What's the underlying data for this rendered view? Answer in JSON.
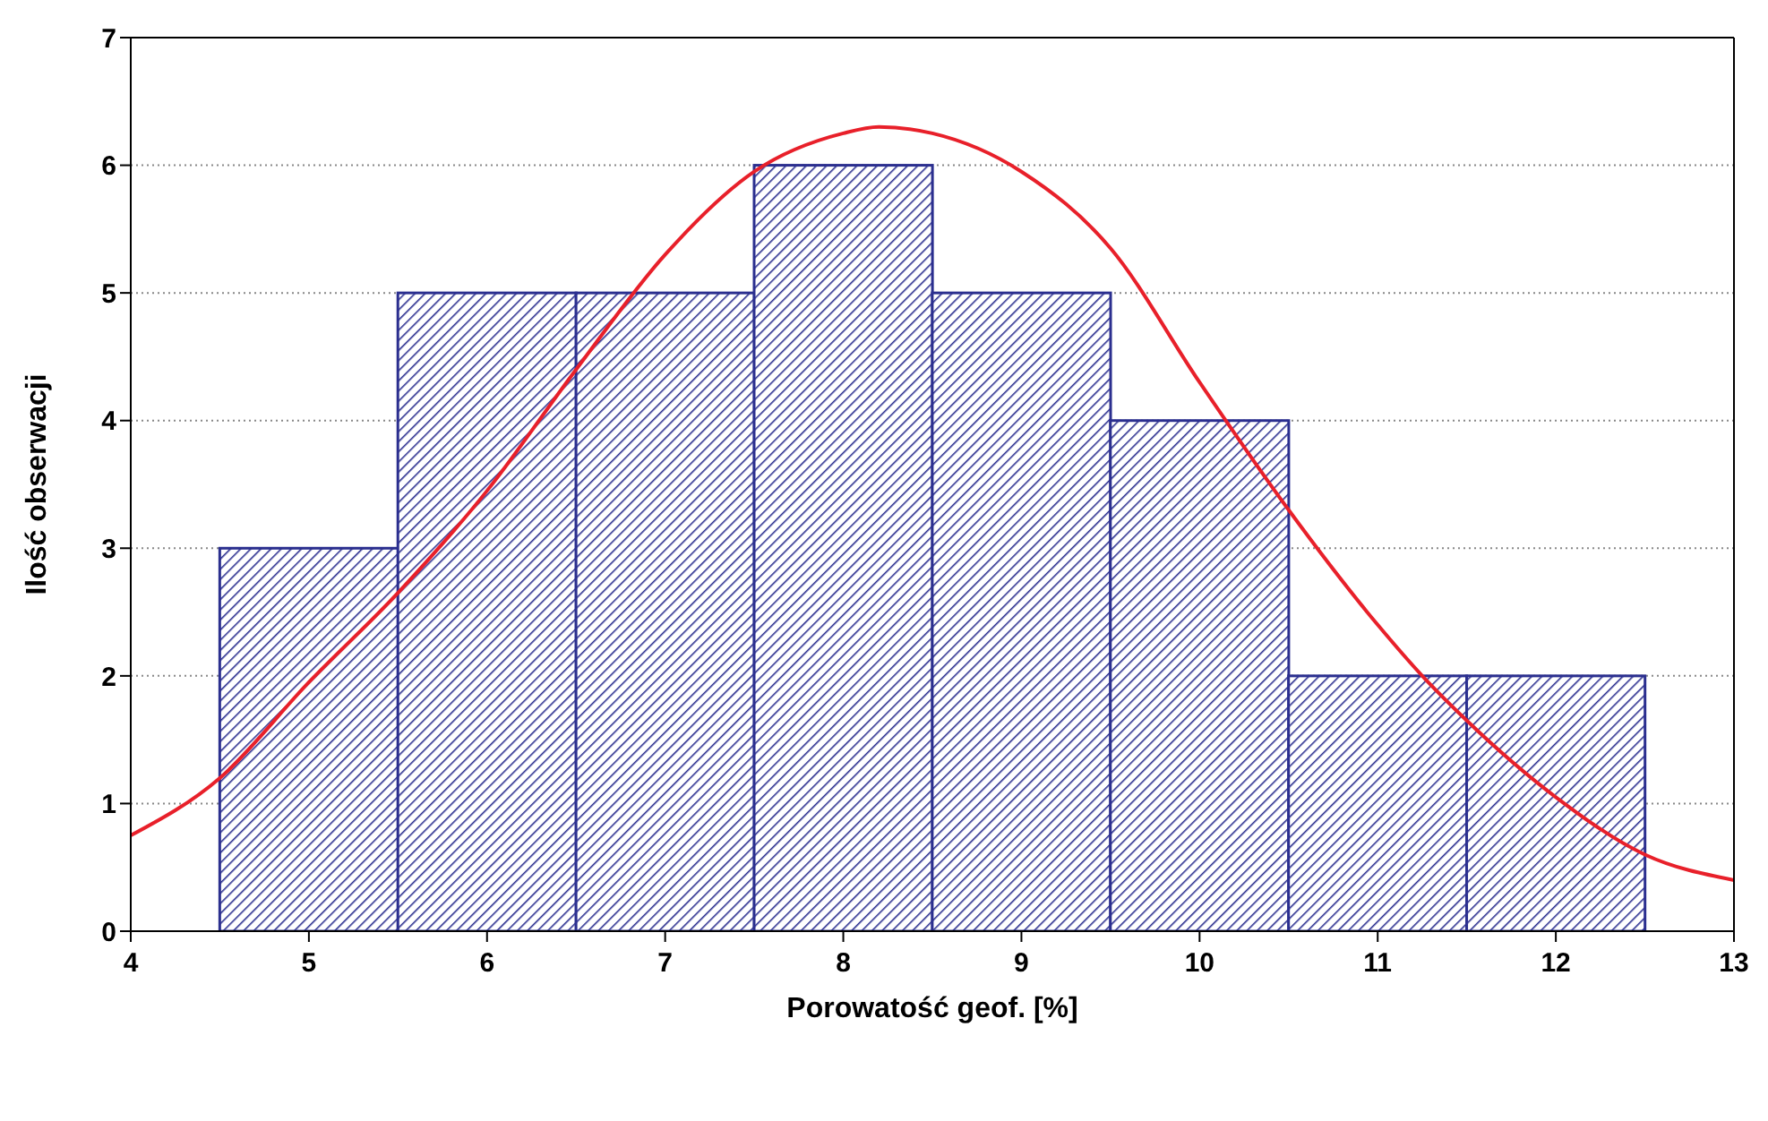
{
  "chart_data": {
    "type": "histogram",
    "xlabel": "Porowatość geof. [%]",
    "ylabel": "Ilość obserwacji",
    "bins": [
      4.5,
      5.5,
      6.5,
      7.5,
      8.5,
      9.5,
      10.5,
      11.5,
      12.5
    ],
    "values": [
      3,
      5,
      5,
      6,
      5,
      4,
      2,
      2
    ],
    "color": "#2b2f8f",
    "series": [
      {
        "type": "line",
        "color": "#e8202a",
        "x": [
          4,
          4.5,
          5,
          5.5,
          6,
          6.5,
          7,
          7.5,
          8,
          8.2,
          8.5,
          9,
          9.5,
          10,
          10.5,
          11,
          11.25,
          11.5,
          12,
          12.5,
          13
        ],
        "values": [
          0.75,
          1.2,
          1.95,
          2.65,
          3.45,
          4.4,
          5.3,
          5.95,
          6.25,
          6.3,
          6.25,
          5.95,
          5.35,
          4.3,
          3.3,
          2.4,
          2.0,
          1.65,
          1.05,
          0.6,
          0.4
        ]
      }
    ],
    "xlim": [
      4,
      13
    ],
    "xticks": [
      4,
      5,
      6,
      7,
      8,
      9,
      10,
      11,
      12,
      13
    ],
    "ylim": [
      0,
      7
    ],
    "yticks": [
      0,
      1,
      2,
      3,
      4,
      5,
      6,
      7
    ],
    "grid": "y",
    "marker": "none",
    "line_style": "solid"
  }
}
